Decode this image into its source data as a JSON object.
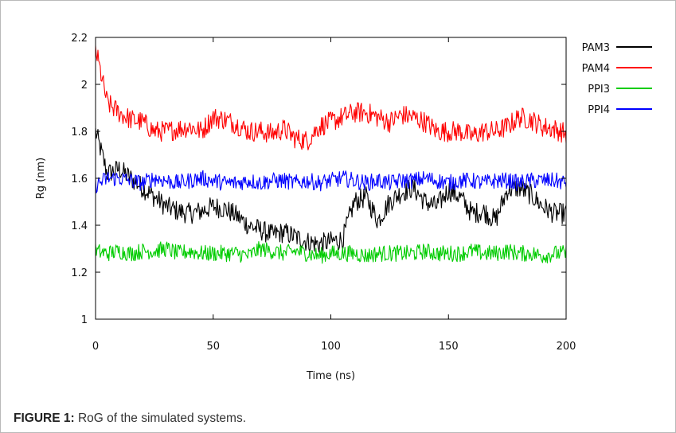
{
  "caption": {
    "label": "FIGURE 1:",
    "text": "RoG of the simulated systems."
  },
  "chart_data": {
    "type": "line",
    "title": "",
    "xlabel": "Time (ns)",
    "ylabel": "Rg (nm)",
    "xlim": [
      0,
      200
    ],
    "ylim": [
      1,
      2.2
    ],
    "xticks": [
      0,
      50,
      100,
      150,
      200
    ],
    "yticks": [
      1,
      1.2,
      1.4,
      1.6,
      1.8,
      2,
      2.2
    ],
    "ytick_labels": [
      "1",
      "1.2",
      "1.4",
      "1.6",
      "1.8",
      "2",
      "2.2"
    ],
    "grid": false,
    "legend_position": "right",
    "x": [
      0,
      5,
      10,
      15,
      20,
      25,
      30,
      35,
      40,
      45,
      50,
      55,
      60,
      65,
      70,
      75,
      80,
      85,
      90,
      95,
      100,
      105,
      110,
      115,
      120,
      125,
      130,
      135,
      140,
      145,
      150,
      155,
      160,
      165,
      170,
      175,
      180,
      185,
      190,
      195,
      200
    ],
    "series": [
      {
        "name": "PAM3",
        "color": "#000000",
        "values": [
          1.8,
          1.62,
          1.64,
          1.6,
          1.56,
          1.52,
          1.48,
          1.46,
          1.45,
          1.46,
          1.48,
          1.47,
          1.44,
          1.4,
          1.38,
          1.36,
          1.37,
          1.35,
          1.33,
          1.32,
          1.33,
          1.34,
          1.5,
          1.52,
          1.42,
          1.5,
          1.54,
          1.56,
          1.5,
          1.48,
          1.55,
          1.52,
          1.45,
          1.46,
          1.42,
          1.55,
          1.56,
          1.53,
          1.48,
          1.45,
          1.45
        ]
      },
      {
        "name": "PAM4",
        "color": "#ff0000",
        "values": [
          2.15,
          1.92,
          1.88,
          1.85,
          1.84,
          1.8,
          1.8,
          1.81,
          1.82,
          1.8,
          1.86,
          1.85,
          1.83,
          1.8,
          1.8,
          1.79,
          1.81,
          1.77,
          1.76,
          1.82,
          1.84,
          1.86,
          1.88,
          1.88,
          1.86,
          1.84,
          1.87,
          1.86,
          1.84,
          1.8,
          1.8,
          1.8,
          1.78,
          1.8,
          1.8,
          1.82,
          1.86,
          1.85,
          1.82,
          1.81,
          1.79
        ]
      },
      {
        "name": "PPI3",
        "color": "#00cc00",
        "values": [
          1.29,
          1.28,
          1.29,
          1.28,
          1.29,
          1.29,
          1.3,
          1.28,
          1.29,
          1.28,
          1.28,
          1.28,
          1.28,
          1.27,
          1.3,
          1.29,
          1.28,
          1.29,
          1.28,
          1.27,
          1.28,
          1.28,
          1.28,
          1.27,
          1.28,
          1.28,
          1.28,
          1.28,
          1.29,
          1.28,
          1.28,
          1.28,
          1.29,
          1.28,
          1.28,
          1.29,
          1.28,
          1.28,
          1.27,
          1.28,
          1.28
        ]
      },
      {
        "name": "PPI4",
        "color": "#0000ff",
        "values": [
          1.57,
          1.6,
          1.6,
          1.59,
          1.58,
          1.6,
          1.59,
          1.58,
          1.59,
          1.6,
          1.59,
          1.58,
          1.58,
          1.59,
          1.58,
          1.59,
          1.59,
          1.58,
          1.59,
          1.58,
          1.59,
          1.6,
          1.59,
          1.58,
          1.59,
          1.58,
          1.59,
          1.59,
          1.6,
          1.59,
          1.58,
          1.59,
          1.59,
          1.58,
          1.59,
          1.59,
          1.58,
          1.59,
          1.59,
          1.59,
          1.58
        ]
      }
    ]
  }
}
